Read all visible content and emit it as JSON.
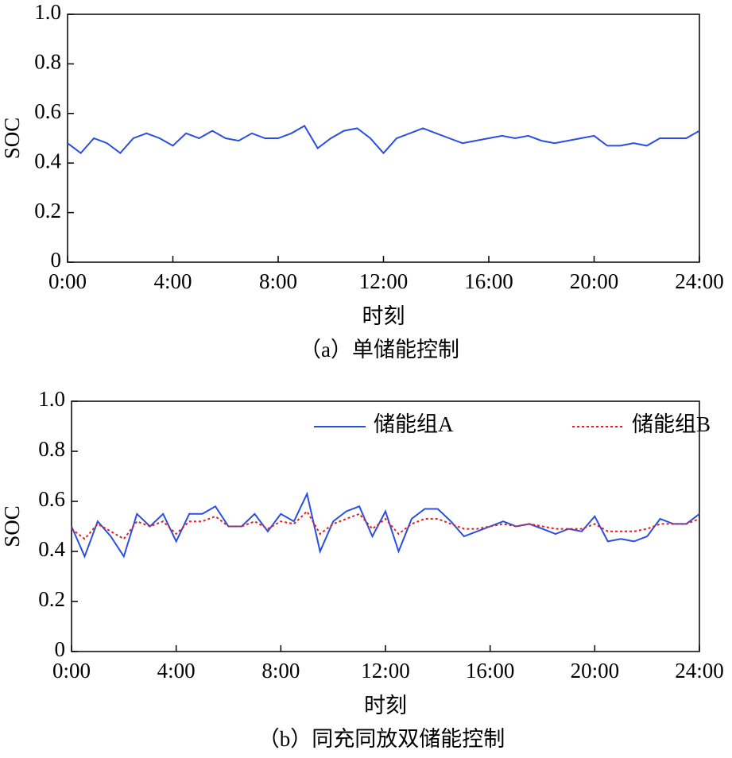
{
  "chart_data": [
    {
      "type": "line",
      "caption": "（a）单储能控制",
      "xlabel": "时刻",
      "ylabel": "SOC",
      "x": [
        0,
        0.5,
        1,
        1.5,
        2,
        2.5,
        3,
        3.5,
        4,
        4.5,
        5,
        5.5,
        6,
        6.5,
        7,
        7.5,
        8,
        8.5,
        9,
        9.5,
        10,
        10.5,
        11,
        11.5,
        12,
        12.5,
        13,
        13.5,
        14,
        14.5,
        15,
        15.5,
        16,
        16.5,
        17,
        17.5,
        18,
        18.5,
        19,
        19.5,
        20,
        20.5,
        21,
        21.5,
        22,
        22.5,
        23,
        23.5,
        24
      ],
      "values": [
        0.48,
        0.44,
        0.5,
        0.48,
        0.44,
        0.5,
        0.52,
        0.5,
        0.47,
        0.52,
        0.5,
        0.53,
        0.5,
        0.49,
        0.52,
        0.5,
        0.5,
        0.52,
        0.55,
        0.46,
        0.5,
        0.53,
        0.54,
        0.5,
        0.44,
        0.5,
        0.52,
        0.54,
        0.52,
        0.5,
        0.48,
        0.49,
        0.5,
        0.51,
        0.5,
        0.51,
        0.49,
        0.48,
        0.49,
        0.5,
        0.51,
        0.47,
        0.47,
        0.48,
        0.47,
        0.5,
        0.5,
        0.5,
        0.53
      ],
      "color": "#2a4fe0",
      "xlim": [
        0,
        24
      ],
      "xticks": [
        {
          "value": 0,
          "label": "0:00"
        },
        {
          "value": 4,
          "label": "4:00"
        },
        {
          "value": 8,
          "label": "8:00"
        },
        {
          "value": 12,
          "label": "12:00"
        },
        {
          "value": 16,
          "label": "16:00"
        },
        {
          "value": 20,
          "label": "20:00"
        },
        {
          "value": 24,
          "label": "24:00"
        }
      ],
      "ylim": [
        0,
        1
      ],
      "yticks": [
        0,
        0.2,
        0.4,
        0.6,
        0.8,
        {
          "value": 1,
          "label": "1.0"
        }
      ]
    },
    {
      "type": "line",
      "caption": "（b）同充同放双储能控制",
      "xlabel": "时刻",
      "ylabel": "SOC",
      "x": [
        0,
        0.5,
        1,
        1.5,
        2,
        2.5,
        3,
        3.5,
        4,
        4.5,
        5,
        5.5,
        6,
        6.5,
        7,
        7.5,
        8,
        8.5,
        9,
        9.5,
        10,
        10.5,
        11,
        11.5,
        12,
        12.5,
        13,
        13.5,
        14,
        14.5,
        15,
        15.5,
        16,
        16.5,
        17,
        17.5,
        18,
        18.5,
        19,
        19.5,
        20,
        20.5,
        21,
        21.5,
        22,
        22.5,
        23,
        23.5,
        24
      ],
      "series": [
        {
          "name": "储能组A",
          "color": "#2a4fe0",
          "linestyle": "solid",
          "values": [
            0.5,
            0.38,
            0.52,
            0.46,
            0.38,
            0.55,
            0.5,
            0.55,
            0.44,
            0.55,
            0.55,
            0.58,
            0.5,
            0.5,
            0.55,
            0.48,
            0.55,
            0.52,
            0.63,
            0.4,
            0.52,
            0.56,
            0.58,
            0.46,
            0.56,
            0.4,
            0.53,
            0.57,
            0.57,
            0.52,
            0.46,
            0.48,
            0.5,
            0.52,
            0.5,
            0.51,
            0.49,
            0.47,
            0.49,
            0.48,
            0.54,
            0.44,
            0.45,
            0.44,
            0.46,
            0.53,
            0.51,
            0.51,
            0.55
          ]
        },
        {
          "name": "储能组B",
          "color": "#e02020",
          "linestyle": "dotted",
          "values": [
            0.49,
            0.45,
            0.51,
            0.48,
            0.45,
            0.52,
            0.5,
            0.52,
            0.47,
            0.52,
            0.52,
            0.54,
            0.5,
            0.5,
            0.52,
            0.49,
            0.52,
            0.51,
            0.56,
            0.47,
            0.51,
            0.53,
            0.55,
            0.49,
            0.53,
            0.47,
            0.51,
            0.53,
            0.53,
            0.51,
            0.49,
            0.49,
            0.5,
            0.51,
            0.5,
            0.51,
            0.5,
            0.49,
            0.49,
            0.49,
            0.51,
            0.48,
            0.48,
            0.48,
            0.49,
            0.51,
            0.51,
            0.51,
            0.53
          ]
        }
      ],
      "legend": "upper right",
      "xlim": [
        0,
        24
      ],
      "xticks": [
        {
          "value": 0,
          "label": "0:00"
        },
        {
          "value": 4,
          "label": "4:00"
        },
        {
          "value": 8,
          "label": "8:00"
        },
        {
          "value": 12,
          "label": "12:00"
        },
        {
          "value": 16,
          "label": "16:00"
        },
        {
          "value": 20,
          "label": "20:00"
        },
        {
          "value": 24,
          "label": "24:00"
        }
      ],
      "ylim": [
        0,
        1
      ],
      "yticks": [
        0,
        0.2,
        0.4,
        0.6,
        0.8,
        {
          "value": 1,
          "label": "1.0"
        }
      ]
    }
  ]
}
